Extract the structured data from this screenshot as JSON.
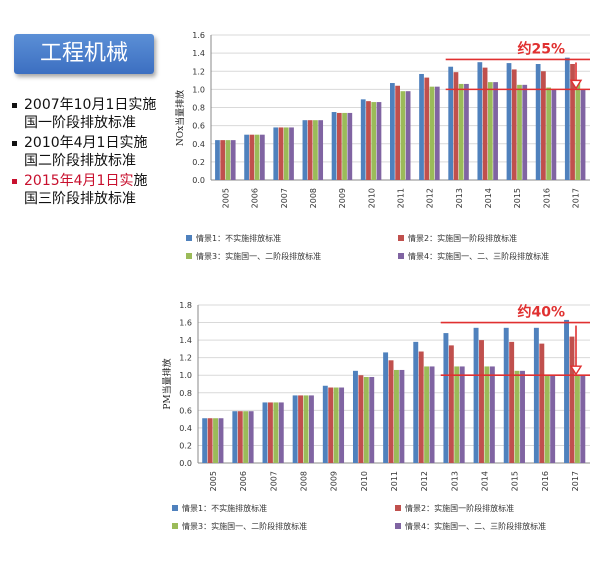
{
  "slide": {
    "title": "工程机械",
    "bullets": [
      {
        "text": "2007年10月1日实施国一阶段排放标准",
        "highlight": ""
      },
      {
        "text": "2010年4月1日实施国二阶段排放标准",
        "highlight": ""
      },
      {
        "text": "施国三阶段排放标准",
        "highlight": "2015年4月1日实"
      }
    ]
  },
  "colors": {
    "s1": "#4f81bd",
    "s2": "#c0504d",
    "s3": "#9bbb59",
    "s4": "#8064a2",
    "annotation": "#e03030"
  },
  "chart_data": [
    {
      "type": "bar",
      "ylabel": "NOx当量排放",
      "ylim": [
        0,
        1.6
      ],
      "yticks": [
        "0.0",
        "0.2",
        "0.4",
        "0.6",
        "0.8",
        "1.0",
        "1.2",
        "1.4",
        "1.6"
      ],
      "categories": [
        "2005",
        "2006",
        "2007",
        "2008",
        "2009",
        "2010",
        "2011",
        "2012",
        "2013",
        "2014",
        "2015",
        "2016",
        "2017"
      ],
      "annotation": "约25%",
      "annotation_range": [
        1.33,
        1.0
      ],
      "legend_position": "bottom",
      "series": [
        {
          "name": "情景1：不实施排放标准",
          "values": [
            0.44,
            0.5,
            0.58,
            0.66,
            0.75,
            0.89,
            1.07,
            1.17,
            1.25,
            1.3,
            1.29,
            1.28,
            1.35
          ]
        },
        {
          "name": "情景2：实施国一阶段排放标准",
          "values": [
            0.44,
            0.5,
            0.58,
            0.66,
            0.74,
            0.87,
            1.04,
            1.13,
            1.19,
            1.24,
            1.22,
            1.2,
            1.28
          ]
        },
        {
          "name": "情景3：实施国一、二阶段排放标准",
          "values": [
            0.44,
            0.5,
            0.58,
            0.66,
            0.74,
            0.86,
            0.98,
            1.03,
            1.06,
            1.08,
            1.05,
            1.02,
            1.07
          ]
        },
        {
          "name": "情景4：实施国一、二、三阶段排放标准",
          "values": [
            0.44,
            0.5,
            0.58,
            0.66,
            0.74,
            0.86,
            0.98,
            1.03,
            1.06,
            1.08,
            1.05,
            1.0,
            1.0
          ]
        }
      ]
    },
    {
      "type": "bar",
      "ylabel": "PM当量排放",
      "ylim": [
        0,
        1.8
      ],
      "yticks": [
        "0.0",
        "0.2",
        "0.4",
        "0.6",
        "0.8",
        "1.0",
        "1.2",
        "1.4",
        "1.6",
        "1.8"
      ],
      "categories": [
        "2005",
        "2006",
        "2007",
        "2008",
        "2009",
        "2010",
        "2011",
        "2012",
        "2013",
        "2014",
        "2015",
        "2016",
        "2017"
      ],
      "annotation": "约40%",
      "annotation_range": [
        1.6,
        1.0
      ],
      "legend_position": "bottom",
      "series": [
        {
          "name": "情景1：不实施排放标准",
          "values": [
            0.51,
            0.59,
            0.69,
            0.77,
            0.88,
            1.05,
            1.26,
            1.38,
            1.48,
            1.54,
            1.54,
            1.54,
            1.63
          ]
        },
        {
          "name": "情景2：实施国一阶段排放标准",
          "values": [
            0.51,
            0.59,
            0.69,
            0.77,
            0.86,
            1.0,
            1.17,
            1.27,
            1.34,
            1.4,
            1.38,
            1.36,
            1.44
          ]
        },
        {
          "name": "情景3：实施国一、二阶段排放标准",
          "values": [
            0.51,
            0.59,
            0.69,
            0.77,
            0.86,
            0.98,
            1.06,
            1.1,
            1.1,
            1.1,
            1.05,
            1.0,
            1.0
          ]
        },
        {
          "name": "情景4：实施国一、二、三阶段排放标准",
          "values": [
            0.51,
            0.59,
            0.69,
            0.77,
            0.86,
            0.98,
            1.06,
            1.1,
            1.1,
            1.1,
            1.05,
            1.0,
            1.0
          ]
        }
      ]
    }
  ]
}
